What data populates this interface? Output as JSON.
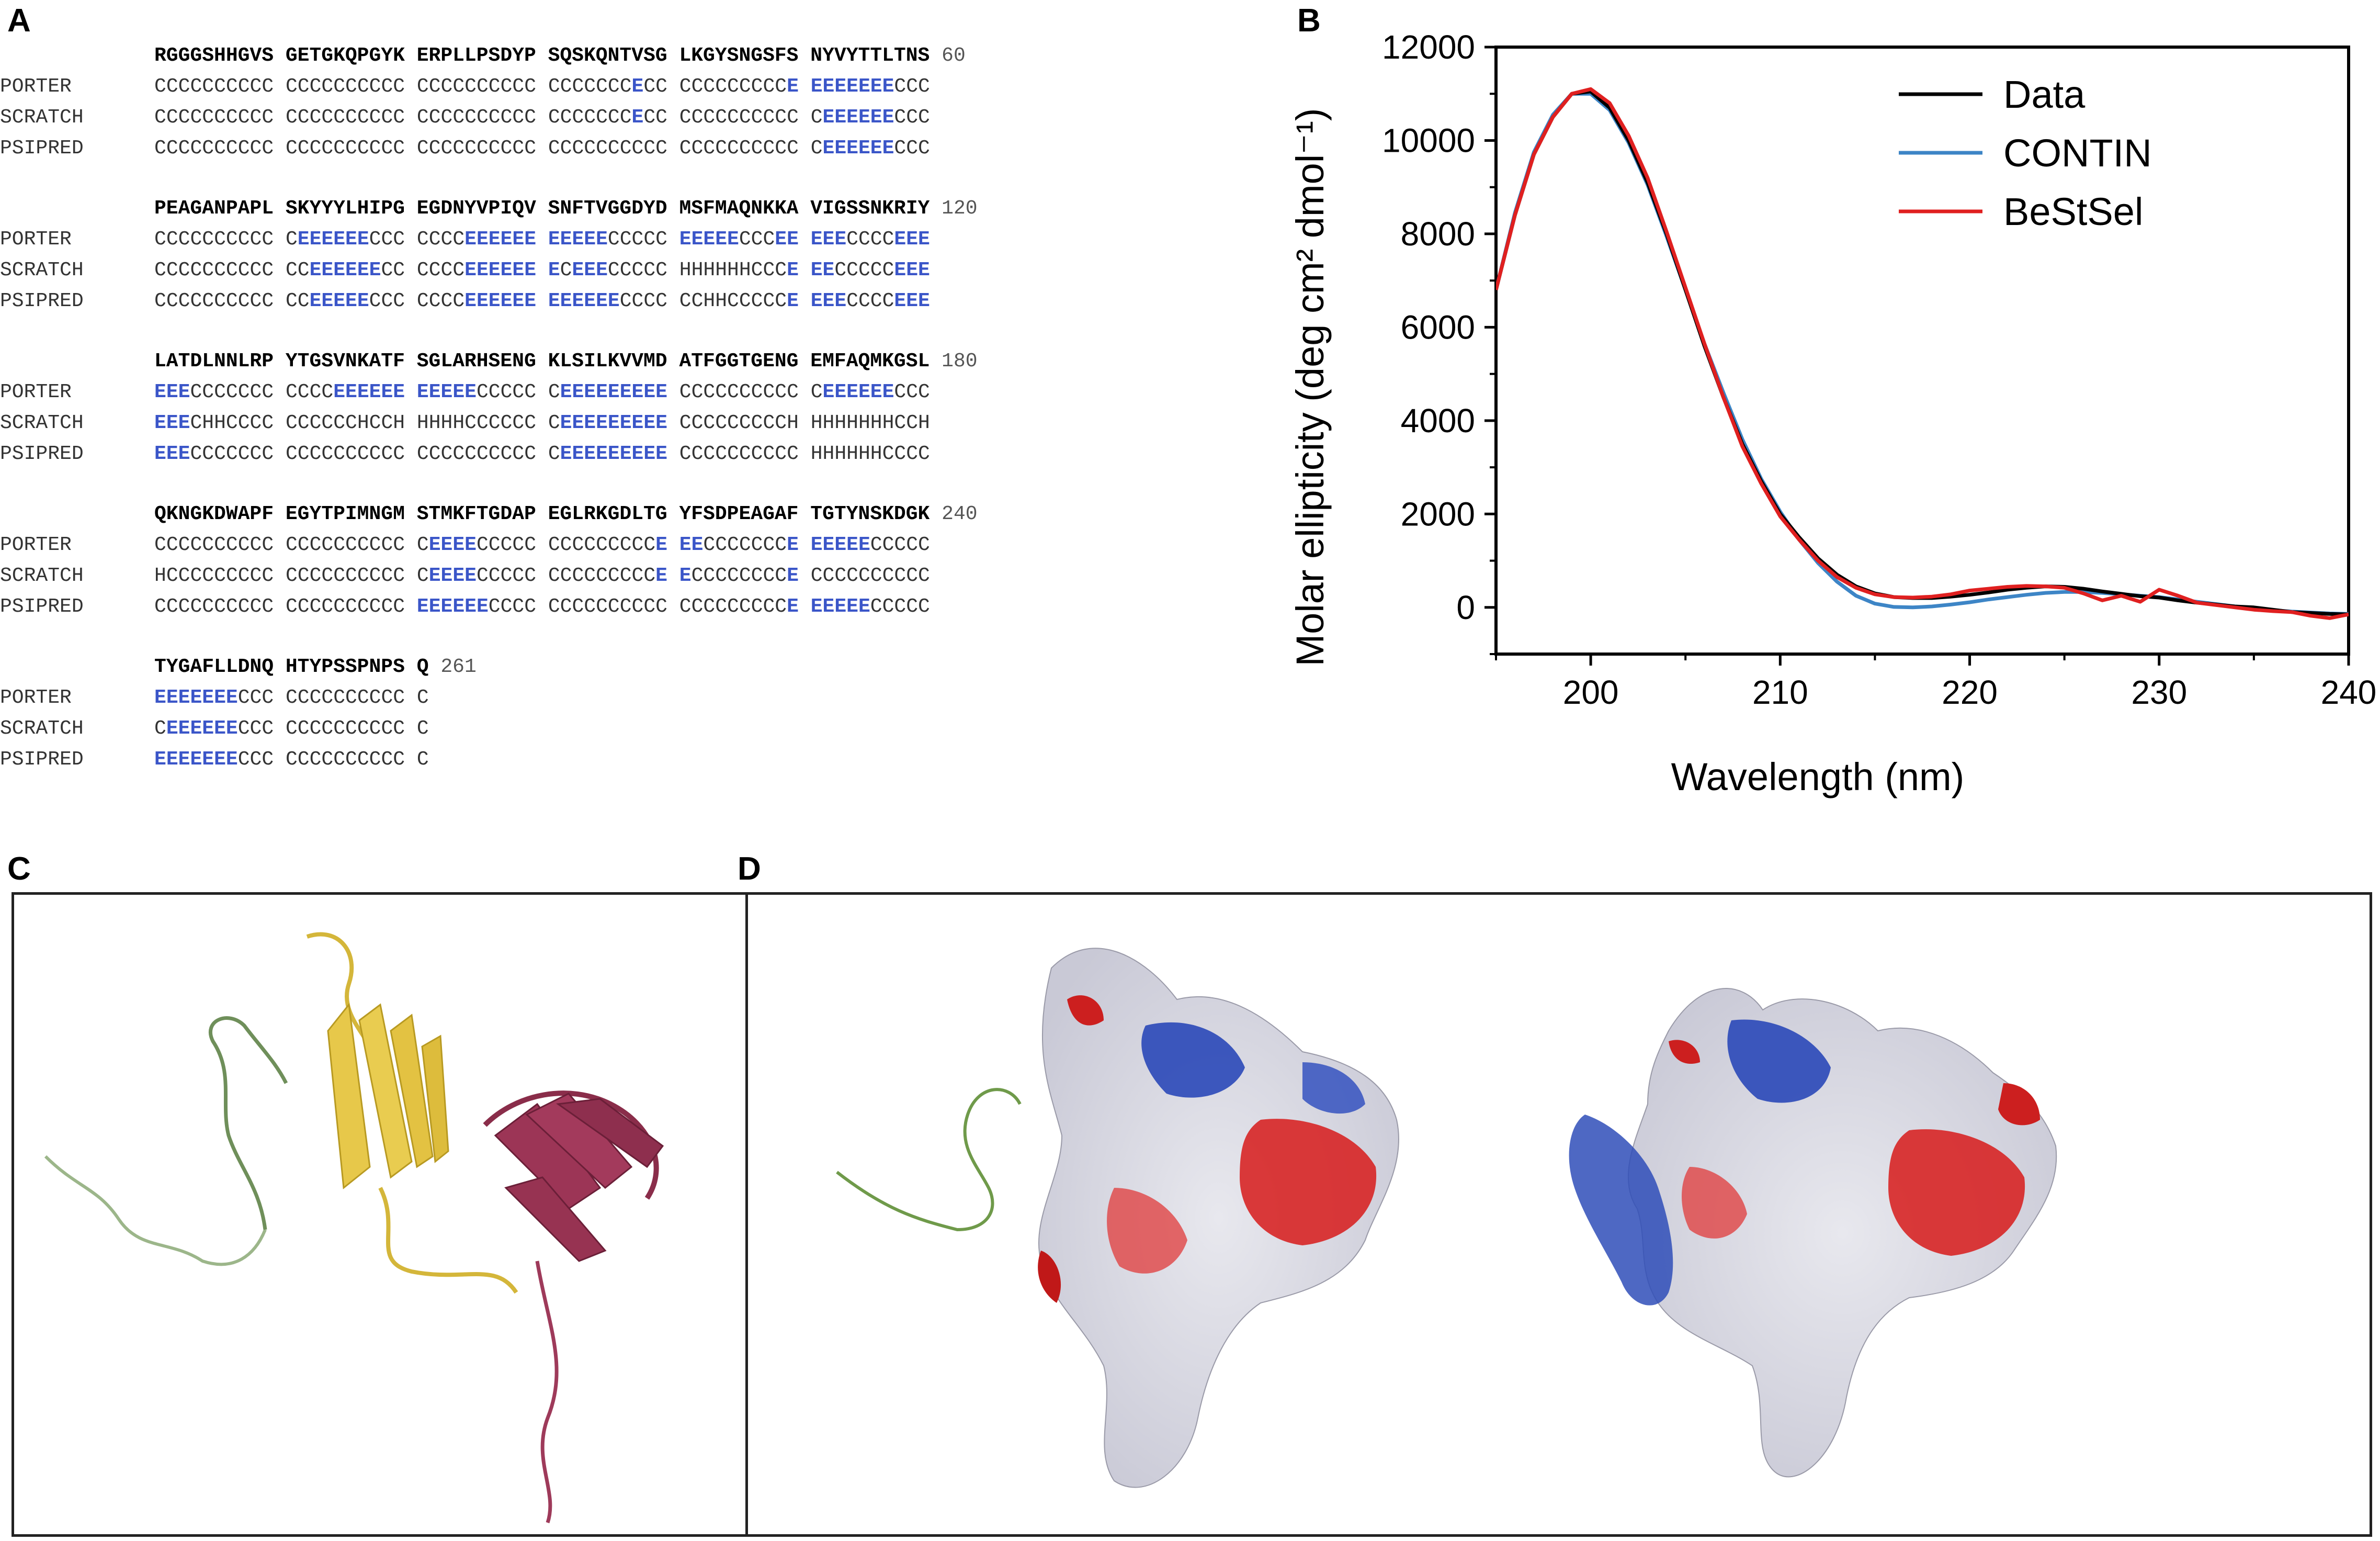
{
  "panel_labels": {
    "a": "A",
    "b": "B",
    "c": "C",
    "d": "D"
  },
  "panel_a": {
    "row_labels": [
      "PORTER",
      "SCRATCH",
      "PSIPRED"
    ],
    "blocks": [
      {
        "sequence": [
          "RGGGSHHGVS",
          "GETGKQPGYK",
          "ERPLLPSDYP",
          "SQSKQNTVSG",
          "LKGYSNGSFS",
          "NYVYTTLTNS"
        ],
        "end": "60",
        "predictions": [
          [
            "CCCCCCCCCC",
            "CCCCCCCCCC",
            "CCCCCCCCCC",
            "CCCCCCCECC",
            "CCCCCCCCCE",
            "EEEEEEECCC"
          ],
          [
            "CCCCCCCCCC",
            "CCCCCCCCCC",
            "CCCCCCCCCC",
            "CCCCCCCECC",
            "CCCCCCCCCC",
            "CEEEEEECCC"
          ],
          [
            "CCCCCCCCCC",
            "CCCCCCCCCC",
            "CCCCCCCCCC",
            "CCCCCCCCCC",
            "CCCCCCCCCC",
            "CEEEEEECCC"
          ]
        ]
      },
      {
        "sequence": [
          "PEAGANPAPL",
          "SKYYYLHIPG",
          "EGDNYVPIQV",
          "SNFTVGGDYD",
          "MSFMAQNKKA",
          "VIGSSNKRIY"
        ],
        "end": "120",
        "predictions": [
          [
            "CCCCCCCCCC",
            "CEEEEEECCC",
            "CCCCEEEEEE",
            "EEEEECCCCC",
            "EEEEECCCEE",
            "EEECCCCEEE"
          ],
          [
            "CCCCCCCCCC",
            "CCEEEEEECC",
            "CCCCEEEEEE",
            "ECEEECCCCC",
            "HHHHHHCCCE",
            "EECCCCCEEE"
          ],
          [
            "CCCCCCCCCC",
            "CCEEEEECCC",
            "CCCCEEEEEE",
            "EEEEEECCCC",
            "CCHHCCCCCE",
            "EEECCCCEEE"
          ]
        ]
      },
      {
        "sequence": [
          "LATDLNNLRP",
          "YTGSVNKATF",
          "SGLARHSENG",
          "KLSILKVVMD",
          "ATFGGTGENG",
          "EMFAQMKGSL"
        ],
        "end": "180",
        "predictions": [
          [
            "EEECCCCCCC",
            "CCCCEEEEEE",
            "EEEEECCCCC",
            "CEEEEEEEEE",
            "CCCCCCCCCC",
            "CEEEEEECCC"
          ],
          [
            "EEECHHCCCC",
            "CCCCCCHCCH",
            "HHHHCCCCCC",
            "CEEEEEEEEE",
            "CCCCCCCCCH",
            "HHHHHHHCCH"
          ],
          [
            "EEECCCCCCC",
            "CCCCCCCCCC",
            "CCCCCCCCCC",
            "CEEEEEEEEE",
            "CCCCCCCCCC",
            "HHHHHHCCCC"
          ]
        ]
      },
      {
        "sequence": [
          "QKNGKDWAPF",
          "EGYTPIMNGM",
          "STMKFTGDAP",
          "EGLRKGDLTG",
          "YFSDPEAGAF",
          "TGTYNSKDGK"
        ],
        "end": "240",
        "predictions": [
          [
            "CCCCCCCCCC",
            "CCCCCCCCCC",
            "CEEEECCCCC",
            "CCCCCCCCCE",
            "EECCCCCCCE",
            "EEEEECCCCC"
          ],
          [
            "HCCCCCCCCC",
            "CCCCCCCCCC",
            "CEEEECCCCC",
            "CCCCCCCCCE",
            "ECCCCCCCCE",
            "CCCCCCCCCC"
          ],
          [
            "CCCCCCCCCC",
            "CCCCCCCCCC",
            "EEEEEECCCC",
            "CCCCCCCCCC",
            "CCCCCCCCCE",
            "EEEEECCCCC"
          ]
        ]
      },
      {
        "sequence": [
          "TYGAFLLDNQ",
          "HTYPSSPNPS",
          "Q"
        ],
        "end": "261",
        "predictions": [
          [
            "EEEEEEECCC",
            "CCCCCCCCCC",
            "C"
          ],
          [
            "CEEEEEECCC",
            "CCCCCCCCCC",
            "C"
          ],
          [
            "EEEEEEECCC",
            "CCCCCCCCCC",
            "C"
          ]
        ]
      }
    ]
  },
  "chart_data": {
    "type": "line",
    "xlabel": "Wavelength (nm)",
    "ylabel": "Molar ellipticity (deg cm² dmol⁻¹)",
    "xlim": [
      195,
      240
    ],
    "ylim": [
      -1000,
      12000
    ],
    "x_ticks": [
      "200",
      "210",
      "220",
      "230",
      "240"
    ],
    "y_ticks": [
      "0",
      "2000",
      "4000",
      "6000",
      "8000",
      "10000",
      "12000"
    ],
    "legend_position": "top-right",
    "series": [
      {
        "name": "Data",
        "color": "#000000",
        "x": [
          195,
          196,
          197,
          198,
          199,
          200,
          201,
          202,
          203,
          204,
          205,
          206,
          207,
          208,
          209,
          210,
          211,
          212,
          213,
          214,
          215,
          216,
          217,
          218,
          219,
          220,
          221,
          222,
          223,
          224,
          225,
          226,
          227,
          228,
          229,
          230,
          231,
          232,
          233,
          234,
          235,
          236,
          237,
          238,
          239,
          240
        ],
        "y": [
          6800,
          8400,
          9700,
          10500,
          11000,
          11050,
          10700,
          10000,
          9100,
          8000,
          6800,
          5600,
          4500,
          3500,
          2700,
          2000,
          1500,
          1050,
          700,
          450,
          300,
          220,
          200,
          200,
          230,
          270,
          320,
          380,
          420,
          450,
          440,
          400,
          340,
          290,
          240,
          210,
          150,
          100,
          60,
          20,
          0,
          -50,
          -100,
          -120,
          -140,
          -150
        ]
      },
      {
        "name": "CONTIN",
        "color": "#3d85c6",
        "x": [
          195,
          196,
          197,
          198,
          199,
          200,
          201,
          202,
          203,
          204,
          205,
          206,
          207,
          208,
          209,
          210,
          211,
          212,
          213,
          214,
          215,
          216,
          217,
          218,
          219,
          220,
          221,
          222,
          223,
          224,
          225,
          226,
          227,
          228,
          229,
          230,
          231,
          232,
          233,
          234,
          235,
          236,
          237,
          238,
          239,
          240
        ],
        "y": [
          6800,
          8450,
          9750,
          10550,
          11000,
          11000,
          10650,
          9950,
          9050,
          7950,
          6800,
          5650,
          4600,
          3600,
          2750,
          2050,
          1450,
          950,
          550,
          250,
          80,
          10,
          0,
          20,
          60,
          110,
          170,
          220,
          270,
          310,
          330,
          330,
          310,
          280,
          250,
          220,
          170,
          120,
          70,
          20,
          -20,
          -60,
          -90,
          -110,
          -130,
          -140
        ]
      },
      {
        "name": "BeStSel",
        "color": "#e02020",
        "x": [
          195,
          196,
          197,
          198,
          199,
          200,
          201,
          202,
          203,
          204,
          205,
          206,
          207,
          208,
          209,
          210,
          211,
          212,
          213,
          214,
          215,
          216,
          217,
          218,
          219,
          220,
          221,
          222,
          223,
          224,
          225,
          226,
          227,
          228,
          229,
          230,
          231,
          232,
          233,
          234,
          235,
          236,
          237,
          238,
          239,
          240
        ],
        "y": [
          6800,
          8400,
          9700,
          10500,
          11000,
          11100,
          10800,
          10100,
          9200,
          8050,
          6850,
          5650,
          4500,
          3450,
          2650,
          1950,
          1450,
          1000,
          650,
          420,
          280,
          220,
          210,
          230,
          280,
          360,
          400,
          440,
          460,
          450,
          420,
          300,
          150,
          250,
          120,
          380,
          250,
          100,
          50,
          0,
          -50,
          -80,
          -100,
          -180,
          -230,
          -150
        ]
      }
    ]
  }
}
